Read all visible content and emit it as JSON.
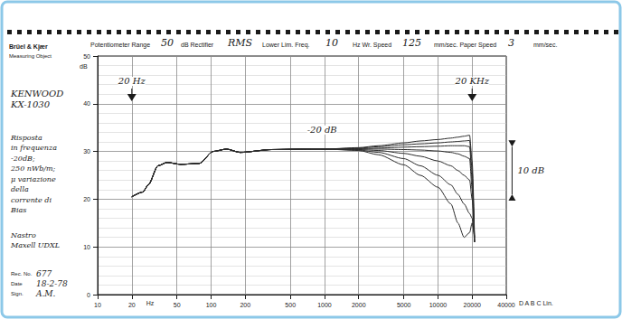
{
  "chart_data": {
    "type": "line",
    "brand": "Brüel & Kjær",
    "object_label": "Measuring Object",
    "header": [
      {
        "label": "Potentiometer Range",
        "entry": "50"
      },
      {
        "label": "dB Rectifier",
        "entry": "RMS"
      },
      {
        "label": "Lower Lim. Freq.",
        "entry": "10"
      },
      {
        "label": "Hz Wr. Speed",
        "entry": "125"
      },
      {
        "label": "mm/sec. Paper Speed",
        "entry": "3"
      },
      {
        "label": "mm/sec."
      }
    ],
    "measuring_object": [
      "KENWOOD",
      "KX-1030"
    ],
    "notes": [
      "Risposta",
      "in frequenza",
      "-20dB;",
      "250 nWb/m;",
      "μ variazione",
      "della",
      "corrente di",
      "Bias"
    ],
    "tape": [
      "Nastro",
      "Maxell UDXL"
    ],
    "record": [
      {
        "label": "Rec. No.",
        "entry": "677"
      },
      {
        "label": "Date",
        "entry": "18-2-78"
      },
      {
        "label": "Sign.",
        "entry": "A.M."
      }
    ],
    "xlabel": "Hz",
    "ylabel": "dB",
    "x_extra": "D A B C Lin.",
    "log": "x",
    "grid": true,
    "xlim": [
      10,
      40000
    ],
    "xticks": [
      10,
      20,
      50,
      100,
      200,
      500,
      1000,
      2000,
      5000,
      10000,
      20000,
      40000
    ],
    "ylim": [
      0,
      50
    ],
    "yticks": [
      0,
      10,
      20,
      30,
      40,
      50
    ],
    "x": [
      20,
      25,
      28,
      34,
      41,
      54,
      79,
      104,
      137,
      180,
      344,
      700,
      1000,
      2000,
      3000,
      5000,
      7000,
      10000,
      13000,
      15000,
      17000,
      19000,
      20000,
      21000
    ],
    "series": [
      {
        "color": "#2b2b2b",
        "values": [
          20.5,
          21.5,
          23,
          27,
          27.7,
          27.3,
          27.5,
          30,
          30.5,
          29.8,
          30.4,
          30.5,
          30.5,
          30.8,
          31.2,
          31.8,
          32.2,
          32.5,
          32.8,
          33,
          33.2,
          33.4,
          28,
          12
        ]
      },
      {
        "color": "#2b2b2b",
        "values": [
          20.5,
          21.5,
          23,
          27,
          27.7,
          27.3,
          27.5,
          30,
          30.5,
          29.8,
          30.4,
          30.5,
          30.5,
          30.7,
          31,
          31.4,
          31.6,
          31.8,
          32,
          32.1,
          32.2,
          32.3,
          26,
          11
        ]
      },
      {
        "color": "#2b2b2b",
        "values": [
          20.5,
          21.5,
          23,
          27,
          27.7,
          27.3,
          27.5,
          30,
          30.5,
          29.8,
          30.4,
          30.5,
          30.5,
          30.6,
          30.7,
          30.9,
          31,
          31.1,
          31.2,
          31.2,
          31.2,
          31,
          24,
          11
        ]
      },
      {
        "color": "#2b2b2b",
        "values": [
          20.5,
          21.5,
          23,
          27,
          27.7,
          27.3,
          27.5,
          30,
          30.5,
          29.8,
          30.4,
          30.5,
          30.5,
          30.5,
          30.5,
          30.4,
          30.3,
          30.1,
          29.8,
          29.5,
          29,
          28.5,
          22,
          11
        ]
      },
      {
        "color": "#2b2b2b",
        "values": [
          20.5,
          21.5,
          23,
          27,
          27.7,
          27.3,
          27.5,
          30,
          30.5,
          29.8,
          30.4,
          30.5,
          30.5,
          30.4,
          30.2,
          29.6,
          29,
          28,
          27,
          26,
          25,
          24,
          20,
          11
        ]
      },
      {
        "color": "#2b2b2b",
        "values": [
          20.5,
          21.5,
          23,
          27,
          27.7,
          27.3,
          27.5,
          30,
          30.5,
          29.8,
          30.4,
          30.5,
          30.5,
          30.3,
          29.8,
          28.5,
          27,
          25,
          23,
          21,
          19,
          17,
          16,
          11
        ]
      },
      {
        "color": "#2b2b2b",
        "values": [
          20.5,
          21.5,
          23,
          27,
          27.7,
          27.3,
          27.5,
          30,
          30.5,
          29.8,
          30.4,
          30.5,
          30.5,
          30.2,
          29.3,
          27.2,
          25,
          22.5,
          19,
          15,
          12,
          13,
          15,
          12
        ]
      }
    ],
    "annotations": [
      {
        "text": "20 Hz",
        "x": 20,
        "y": 44.7,
        "marker": "triangle"
      },
      {
        "text": "20 KHz",
        "x": 20000,
        "y": 44.7,
        "marker": "triangle"
      },
      {
        "text": "-20 dB",
        "x": 950,
        "y": 34.5
      },
      {
        "text": "10 dB",
        "x": 45000,
        "y": [
          21,
          31
        ]
      }
    ]
  }
}
